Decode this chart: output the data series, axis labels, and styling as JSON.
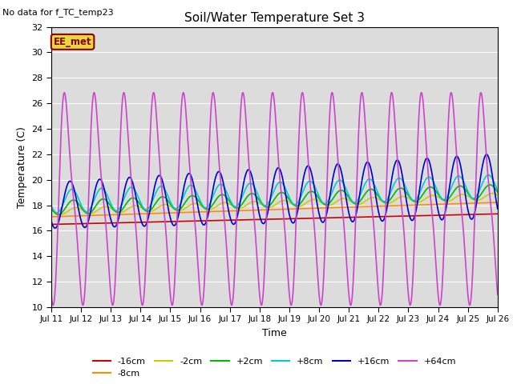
{
  "title": "Soil/Water Temperature Set 3",
  "no_data_text": "No data for f_TC_temp23",
  "xlabel": "Time",
  "ylabel": "Temperature (C)",
  "xlim": [
    0,
    15
  ],
  "ylim": [
    10,
    32
  ],
  "yticks": [
    10,
    12,
    14,
    16,
    18,
    20,
    22,
    24,
    26,
    28,
    30,
    32
  ],
  "xtick_labels": [
    "Jul 11",
    "Jul 12",
    "Jul 13",
    "Jul 14",
    "Jul 15",
    "Jul 16",
    "Jul 17",
    "Jul 18",
    "Jul 19",
    "Jul 20",
    "Jul 21",
    "Jul 22",
    "Jul 23",
    "Jul 24",
    "Jul 25",
    "Jul 26"
  ],
  "background_color": "#dcdcdc",
  "legend_label": "EE_met",
  "series": {
    "-16cm": {
      "color": "#cc0000",
      "lw": 1.2
    },
    "-8cm": {
      "color": "#ff8c00",
      "lw": 1.2
    },
    "-2cm": {
      "color": "#cccc00",
      "lw": 1.2
    },
    "+2cm": {
      "color": "#00bb00",
      "lw": 1.2
    },
    "+8cm": {
      "color": "#00cccc",
      "lw": 1.2
    },
    "+16cm": {
      "color": "#0000cc",
      "lw": 1.2
    },
    "+64cm": {
      "color": "#cc44cc",
      "lw": 1.2
    }
  },
  "figsize": [
    6.4,
    4.8
  ],
  "dpi": 100
}
